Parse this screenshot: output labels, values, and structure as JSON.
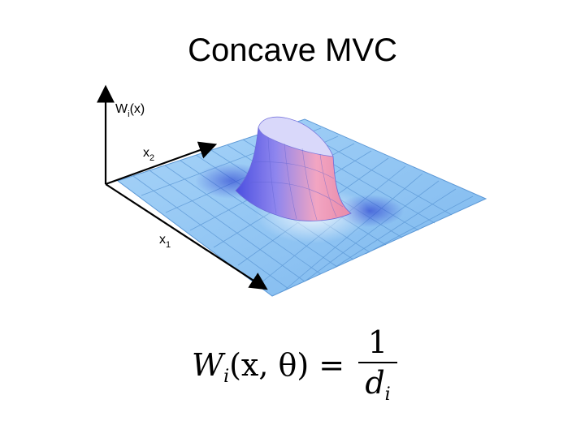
{
  "title": "Concave MVC",
  "axes": {
    "vertical_label": "W",
    "vertical_sub": "i",
    "vertical_arg": "(x)",
    "x2_label": "x",
    "x2_sub": "2",
    "x1_label": "x",
    "x1_sub": "1"
  },
  "formula": {
    "lhs_name": "W",
    "lhs_sub": "i",
    "lhs_args": "(x, θ) =",
    "numerator": "1",
    "denominator_name": "d",
    "denominator_sub": "i"
  },
  "colors": {
    "surface": "#8ec3f2",
    "surface_grid": "#4f8fd0",
    "peak_blue": "#6f6fe6",
    "peak_pink": "#f0a3c4",
    "axis": "#000000"
  }
}
